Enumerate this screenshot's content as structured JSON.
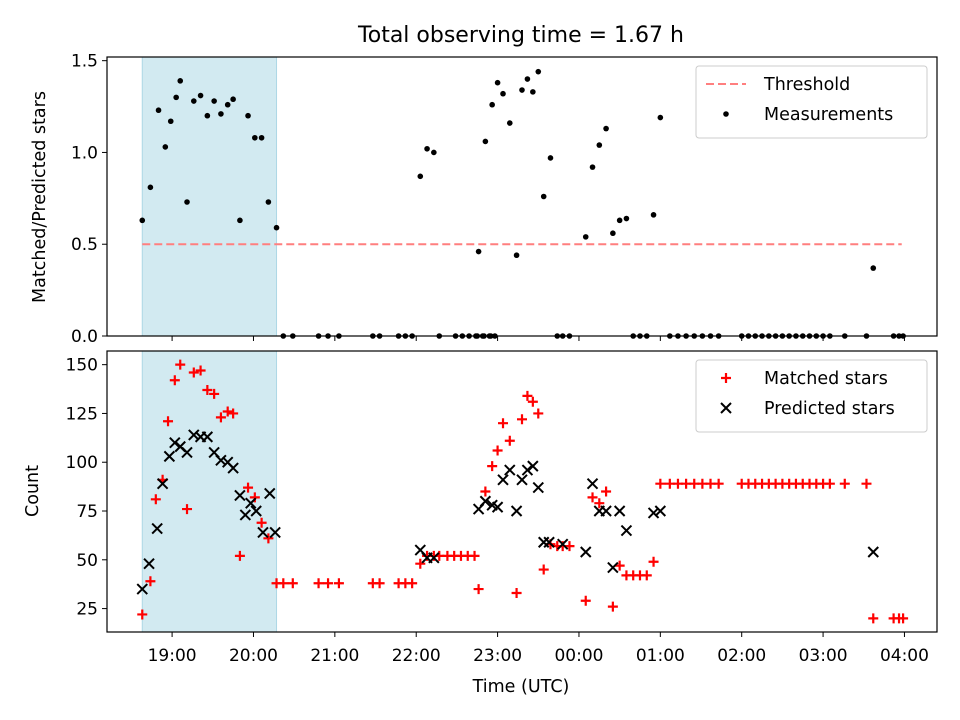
{
  "figure": {
    "title": "Total observing time = 1.67 h"
  },
  "colors": {
    "shade": "#add8e6",
    "threshold": "#ff7f7f",
    "measurement": "#000000",
    "matched": "#ff0000",
    "predicted": "#000000"
  },
  "chart_data": [
    {
      "type": "scatter",
      "ylabel": "Matched/Predicted stars",
      "xlabel": "",
      "x_unit": "hours since 18:00 UTC on observing night",
      "xlim": [
        18.2,
        4.4
      ],
      "ylim": [
        0.0,
        1.52
      ],
      "yticks": [
        0.0,
        0.5,
        1.0,
        1.5
      ],
      "ytick_labels": [
        "0.0",
        "0.5",
        "1.0",
        "1.5"
      ],
      "xticks": [
        "19:00",
        "20:00",
        "21:00",
        "22:00",
        "23:00",
        "00:00",
        "01:00",
        "02:00",
        "03:00",
        "04:00"
      ],
      "shaded_span": [
        "18:38",
        "20:17"
      ],
      "legend": {
        "position": "top-right",
        "entries": [
          "Threshold",
          "Measurements"
        ]
      },
      "threshold": {
        "name": "Threshold",
        "y": 0.5,
        "x_range": [
          "18:38",
          "03:58"
        ]
      },
      "series": [
        {
          "name": "Measurements",
          "marker": "dot",
          "points": [
            [
              "18:38",
              0.63
            ],
            [
              "18:44",
              0.81
            ],
            [
              "18:50",
              1.23
            ],
            [
              "18:55",
              1.03
            ],
            [
              "18:59",
              1.17
            ],
            [
              "19:03",
              1.3
            ],
            [
              "19:06",
              1.39
            ],
            [
              "19:11",
              0.73
            ],
            [
              "19:16",
              1.28
            ],
            [
              "19:21",
              1.31
            ],
            [
              "19:26",
              1.2
            ],
            [
              "19:31",
              1.28
            ],
            [
              "19:36",
              1.21
            ],
            [
              "19:41",
              1.26
            ],
            [
              "19:45",
              1.29
            ],
            [
              "19:50",
              0.63
            ],
            [
              "19:56",
              1.2
            ],
            [
              "20:01",
              1.08
            ],
            [
              "20:06",
              1.08
            ],
            [
              "20:11",
              0.73
            ],
            [
              "20:17",
              0.59
            ],
            [
              "20:22",
              0.0
            ],
            [
              "20:29",
              0.0
            ],
            [
              "20:48",
              0.0
            ],
            [
              "20:55",
              0.0
            ],
            [
              "21:03",
              0.0
            ],
            [
              "21:28",
              0.0
            ],
            [
              "21:33",
              0.0
            ],
            [
              "21:47",
              0.0
            ],
            [
              "21:52",
              0.0
            ],
            [
              "21:57",
              0.0
            ],
            [
              "22:03",
              0.87
            ],
            [
              "22:08",
              1.02
            ],
            [
              "22:13",
              1.0
            ],
            [
              "22:17",
              0.0
            ],
            [
              "22:29",
              0.0
            ],
            [
              "22:34",
              0.0
            ],
            [
              "22:39",
              0.0
            ],
            [
              "22:44",
              0.0
            ],
            [
              "22:49",
              0.0
            ],
            [
              "22:54",
              0.0
            ],
            [
              "22:58",
              0.0
            ],
            [
              "22:45",
              0.0
            ],
            [
              "22:50",
              0.0
            ],
            [
              "22:55",
              0.0
            ],
            [
              "22:46",
              0.46
            ],
            [
              "22:51",
              1.06
            ],
            [
              "22:56",
              1.26
            ],
            [
              "23:00",
              1.38
            ],
            [
              "23:04",
              1.32
            ],
            [
              "23:09",
              1.16
            ],
            [
              "23:14",
              0.44
            ],
            [
              "23:18",
              1.34
            ],
            [
              "23:22",
              1.4
            ],
            [
              "23:26",
              1.33
            ],
            [
              "23:30",
              1.44
            ],
            [
              "23:34",
              0.76
            ],
            [
              "23:39",
              0.97
            ],
            [
              "23:44",
              0.0
            ],
            [
              "23:48",
              0.0
            ],
            [
              "23:53",
              0.0
            ],
            [
              "00:05",
              0.54
            ],
            [
              "00:10",
              0.92
            ],
            [
              "00:15",
              1.04
            ],
            [
              "00:20",
              1.13
            ],
            [
              "00:25",
              0.56
            ],
            [
              "00:30",
              0.63
            ],
            [
              "00:35",
              0.64
            ],
            [
              "00:40",
              0.0
            ],
            [
              "00:45",
              0.0
            ],
            [
              "00:50",
              0.0
            ],
            [
              "00:55",
              0.66
            ],
            [
              "01:00",
              1.19
            ],
            [
              "01:07",
              0.0
            ],
            [
              "01:13",
              0.0
            ],
            [
              "01:19",
              0.0
            ],
            [
              "01:25",
              0.0
            ],
            [
              "01:31",
              0.0
            ],
            [
              "01:37",
              0.0
            ],
            [
              "01:43",
              0.0
            ],
            [
              "02:00",
              0.0
            ],
            [
              "02:05",
              0.0
            ],
            [
              "02:10",
              0.0
            ],
            [
              "02:15",
              0.0
            ],
            [
              "02:20",
              0.0
            ],
            [
              "02:25",
              0.0
            ],
            [
              "02:30",
              0.0
            ],
            [
              "02:35",
              0.0
            ],
            [
              "02:40",
              0.0
            ],
            [
              "02:45",
              0.0
            ],
            [
              "02:50",
              0.0
            ],
            [
              "02:55",
              0.0
            ],
            [
              "03:00",
              0.0
            ],
            [
              "03:05",
              0.0
            ],
            [
              "03:16",
              0.0
            ],
            [
              "03:32",
              0.0
            ],
            [
              "03:37",
              0.37
            ],
            [
              "03:52",
              0.0
            ],
            [
              "03:56",
              0.0
            ],
            [
              "03:59",
              0.0
            ]
          ]
        }
      ]
    },
    {
      "type": "scatter",
      "ylabel": "Count",
      "xlabel": "Time (UTC)",
      "x_unit": "hours since 18:00 UTC on observing night",
      "xlim": [
        18.2,
        4.4
      ],
      "ylim": [
        13,
        157
      ],
      "yticks": [
        25,
        50,
        75,
        100,
        125,
        150
      ],
      "ytick_labels": [
        "25",
        "50",
        "75",
        "100",
        "125",
        "150"
      ],
      "xticks": [
        "19:00",
        "20:00",
        "21:00",
        "22:00",
        "23:00",
        "00:00",
        "01:00",
        "02:00",
        "03:00",
        "04:00"
      ],
      "shaded_span": [
        "18:38",
        "20:17"
      ],
      "legend": {
        "position": "top-right",
        "entries": [
          "Matched stars",
          "Predicted stars"
        ]
      },
      "series": [
        {
          "name": "Matched stars",
          "marker": "plus",
          "points": [
            [
              "18:38",
              22
            ],
            [
              "18:44",
              39
            ],
            [
              "18:48",
              81
            ],
            [
              "18:53",
              91
            ],
            [
              "18:57",
              121
            ],
            [
              "19:02",
              142
            ],
            [
              "19:06",
              150
            ],
            [
              "19:11",
              76
            ],
            [
              "19:16",
              146
            ],
            [
              "19:21",
              147
            ],
            [
              "19:26",
              137
            ],
            [
              "19:31",
              135
            ],
            [
              "19:36",
              123
            ],
            [
              "19:41",
              126
            ],
            [
              "19:45",
              125
            ],
            [
              "19:50",
              52
            ],
            [
              "19:56",
              87
            ],
            [
              "20:01",
              82
            ],
            [
              "20:06",
              69
            ],
            [
              "20:11",
              61
            ],
            [
              "20:17",
              38
            ],
            [
              "20:22",
              38
            ],
            [
              "20:29",
              38
            ],
            [
              "20:48",
              38
            ],
            [
              "20:55",
              38
            ],
            [
              "21:03",
              38
            ],
            [
              "21:28",
              38
            ],
            [
              "21:33",
              38
            ],
            [
              "21:47",
              38
            ],
            [
              "21:52",
              38
            ],
            [
              "21:57",
              38
            ],
            [
              "22:03",
              48
            ],
            [
              "22:08",
              52
            ],
            [
              "22:13",
              52
            ],
            [
              "22:17",
              52
            ],
            [
              "22:23",
              52
            ],
            [
              "22:28",
              52
            ],
            [
              "22:33",
              52
            ],
            [
              "22:38",
              52
            ],
            [
              "22:43",
              52
            ],
            [
              "22:46",
              35
            ],
            [
              "22:51",
              85
            ],
            [
              "22:56",
              98
            ],
            [
              "23:00",
              106
            ],
            [
              "23:04",
              120
            ],
            [
              "23:09",
              111
            ],
            [
              "23:14",
              33
            ],
            [
              "23:18",
              122
            ],
            [
              "23:22",
              134
            ],
            [
              "23:26",
              131
            ],
            [
              "23:30",
              125
            ],
            [
              "23:34",
              45
            ],
            [
              "23:39",
              58
            ],
            [
              "23:44",
              57
            ],
            [
              "23:48",
              57
            ],
            [
              "23:53",
              57
            ],
            [
              "00:05",
              29
            ],
            [
              "00:10",
              82
            ],
            [
              "00:15",
              79
            ],
            [
              "00:20",
              85
            ],
            [
              "00:25",
              26
            ],
            [
              "00:30",
              47
            ],
            [
              "00:35",
              42
            ],
            [
              "00:40",
              42
            ],
            [
              "00:45",
              42
            ],
            [
              "00:50",
              42
            ],
            [
              "00:55",
              49
            ],
            [
              "01:00",
              89
            ],
            [
              "01:07",
              89
            ],
            [
              "01:13",
              89
            ],
            [
              "01:19",
              89
            ],
            [
              "01:25",
              89
            ],
            [
              "01:31",
              89
            ],
            [
              "01:37",
              89
            ],
            [
              "01:43",
              89
            ],
            [
              "02:00",
              89
            ],
            [
              "02:05",
              89
            ],
            [
              "02:10",
              89
            ],
            [
              "02:15",
              89
            ],
            [
              "02:20",
              89
            ],
            [
              "02:25",
              89
            ],
            [
              "02:30",
              89
            ],
            [
              "02:35",
              89
            ],
            [
              "02:40",
              89
            ],
            [
              "02:45",
              89
            ],
            [
              "02:50",
              89
            ],
            [
              "02:55",
              89
            ],
            [
              "03:00",
              89
            ],
            [
              "03:05",
              89
            ],
            [
              "03:16",
              89
            ],
            [
              "03:32",
              89
            ],
            [
              "03:37",
              20
            ],
            [
              "03:52",
              20
            ],
            [
              "03:56",
              20
            ],
            [
              "03:59",
              20
            ]
          ]
        },
        {
          "name": "Predicted stars",
          "marker": "x",
          "points": [
            [
              "18:38",
              35
            ],
            [
              "18:43",
              48
            ],
            [
              "18:49",
              66
            ],
            [
              "18:53",
              89
            ],
            [
              "18:58",
              103
            ],
            [
              "19:02",
              110
            ],
            [
              "19:06",
              108
            ],
            [
              "19:11",
              105
            ],
            [
              "19:16",
              114
            ],
            [
              "19:21",
              113
            ],
            [
              "19:26",
              113
            ],
            [
              "19:31",
              105
            ],
            [
              "19:36",
              101
            ],
            [
              "19:41",
              100
            ],
            [
              "19:45",
              97
            ],
            [
              "19:50",
              83
            ],
            [
              "19:54",
              73
            ],
            [
              "19:58",
              79
            ],
            [
              "20:02",
              75
            ],
            [
              "20:07",
              64
            ],
            [
              "20:12",
              84
            ],
            [
              "20:16",
              64
            ],
            [
              "22:03",
              55
            ],
            [
              "22:08",
              51
            ],
            [
              "22:13",
              51
            ],
            [
              "22:46",
              76
            ],
            [
              "22:51",
              80
            ],
            [
              "22:56",
              78
            ],
            [
              "23:00",
              77
            ],
            [
              "23:04",
              91
            ],
            [
              "23:09",
              96
            ],
            [
              "23:14",
              75
            ],
            [
              "23:18",
              91
            ],
            [
              "23:22",
              96
            ],
            [
              "23:26",
              98
            ],
            [
              "23:30",
              87
            ],
            [
              "23:34",
              59
            ],
            [
              "23:38",
              59
            ],
            [
              "23:48",
              58
            ],
            [
              "00:05",
              54
            ],
            [
              "00:10",
              89
            ],
            [
              "00:15",
              75
            ],
            [
              "00:20",
              75
            ],
            [
              "00:25",
              46
            ],
            [
              "00:30",
              75
            ],
            [
              "00:35",
              65
            ],
            [
              "00:55",
              74
            ],
            [
              "01:00",
              75
            ],
            [
              "03:37",
              54
            ]
          ]
        }
      ]
    }
  ]
}
